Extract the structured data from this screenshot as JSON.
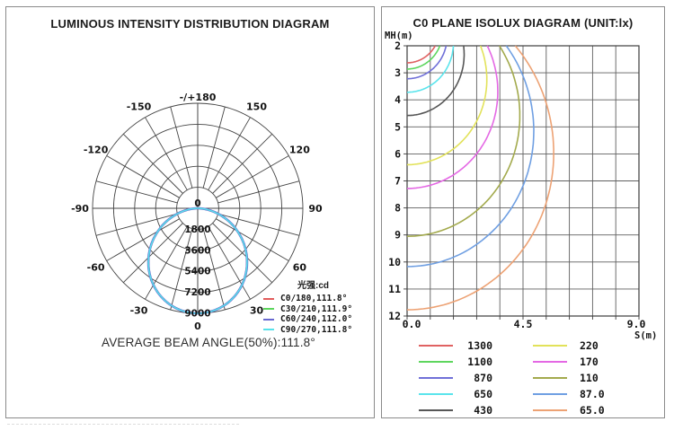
{
  "left_panel": {
    "title": "LUMINOUS INTENSITY DISTRIBUTION DIAGRAM",
    "legend_title": "光强:cd",
    "footer": "AVERAGE BEAM ANGLE(50%):111.8°"
  },
  "right_panel": {
    "title": "C0 PLANE ISOLUX DIAGRAM (UNIT:lx)",
    "y_axis_label": "MH(m)",
    "x_axis_label": "S(m)"
  },
  "chart_data": [
    {
      "type": "line",
      "subtype": "polar_intensity_distribution",
      "title": "LUMINOUS INTENSITY DISTRIBUTION DIAGRAM",
      "unit": "cd",
      "radial_ticks": [
        "1800",
        "3600",
        "5400",
        "7200",
        "9000"
      ],
      "radial_max": 9000,
      "center_label": "0",
      "grid_angle_step_deg": 15,
      "angle_labels": [
        {
          "deg": 0,
          "label": "0"
        },
        {
          "deg": 30,
          "label": "30"
        },
        {
          "deg": 60,
          "label": "60"
        },
        {
          "deg": 90,
          "label": "90"
        },
        {
          "deg": 120,
          "label": "120"
        },
        {
          "deg": 150,
          "label": "150"
        },
        {
          "deg": 180,
          "label": "-/+180"
        },
        {
          "deg": -150,
          "label": "-150"
        },
        {
          "deg": -120,
          "label": "-120"
        },
        {
          "deg": -90,
          "label": "-90"
        },
        {
          "deg": -60,
          "label": "-60"
        },
        {
          "deg": -30,
          "label": "-30"
        }
      ],
      "series": [
        {
          "name": "C0/180,111.8°",
          "color": "#e25c5c",
          "beam_angle_deg": 111.8,
          "peak_cd": 9000
        },
        {
          "name": "C30/210,111.9°",
          "color": "#5cd65c",
          "beam_angle_deg": 111.9,
          "peak_cd": 9000
        },
        {
          "name": "C60/240,112.0°",
          "color": "#6868d0",
          "beam_angle_deg": 112.0,
          "peak_cd": 9000
        },
        {
          "name": "C90/270,111.8°",
          "color": "#57e2ea",
          "beam_angle_deg": 111.8,
          "peak_cd": 9000
        }
      ],
      "legend_title": "光强:cd",
      "annotation": "AVERAGE BEAM ANGLE(50%):111.8°"
    },
    {
      "type": "line",
      "subtype": "isolux_contours",
      "title": "C0 PLANE ISOLUX DIAGRAM (UNIT:lx)",
      "xlabel": "S(m)",
      "ylabel": "MH(m)",
      "xlim": [
        0,
        9
      ],
      "ylim": [
        2,
        12
      ],
      "x_tick_labels": [
        "0.0",
        "4.5",
        "9.0"
      ],
      "y_tick_labels": [
        "2",
        "3",
        "4",
        "5",
        "6",
        "7",
        "8",
        "9",
        "10",
        "11",
        "12"
      ],
      "x_grid_divisions": 10,
      "y_grid_divisions": 10,
      "grid": true,
      "peak_intensity_cd": 9000,
      "contour_exponent": 2.1,
      "levels": [
        {
          "lux": "1300",
          "color": "#e06262",
          "mh_at_s0": 2.63
        },
        {
          "lux": "1100",
          "color": "#5ed65e",
          "mh_at_s0": 2.86
        },
        {
          "lux": "870",
          "color": "#7070d8",
          "mh_at_s0": 3.22
        },
        {
          "lux": "650",
          "color": "#5ae4ec",
          "mh_at_s0": 3.72
        },
        {
          "lux": "430",
          "color": "#565656",
          "mh_at_s0": 4.58
        },
        {
          "lux": "220",
          "color": "#e2e25a",
          "mh_at_s0": 6.4
        },
        {
          "lux": "170",
          "color": "#e468e4",
          "mh_at_s0": 7.28
        },
        {
          "lux": "110",
          "color": "#a3aa4d",
          "mh_at_s0": 9.05
        },
        {
          "lux": "87.0",
          "color": "#6f9fe2",
          "mh_at_s0": 10.17
        },
        {
          "lux": "65.0",
          "color": "#eda274",
          "mh_at_s0": 11.77
        }
      ],
      "legend_position": "bottom"
    }
  ]
}
